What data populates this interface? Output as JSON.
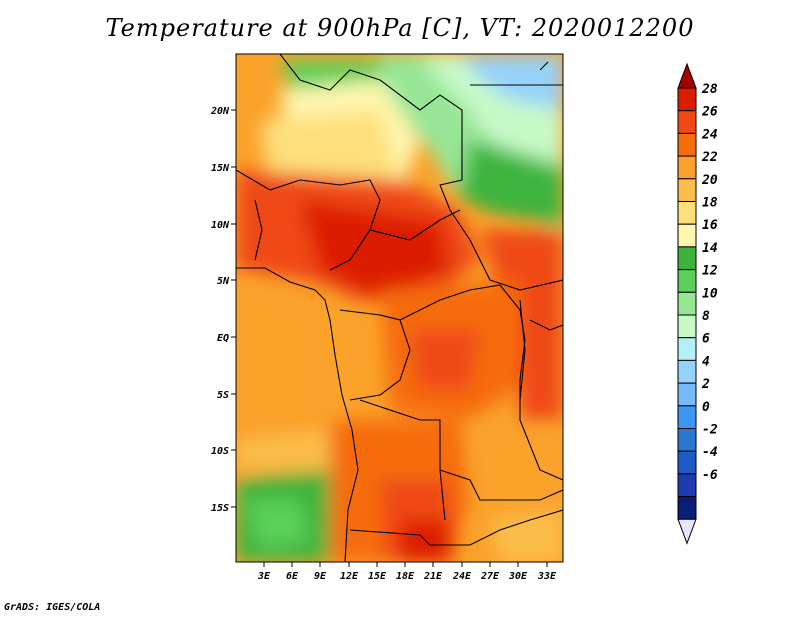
{
  "title": "Temperature at 900hPa [C], VT: 2020012200",
  "credit": "GrADS: IGES/COLA",
  "map": {
    "lat_labels": [
      "20N",
      "15N",
      "10N",
      "5N",
      "EQ",
      "5S",
      "10S",
      "15S"
    ],
    "lon_labels": [
      "3E",
      "6E",
      "9E",
      "12E",
      "15E",
      "18E",
      "21E",
      "24E",
      "27E",
      "30E",
      "33E"
    ]
  },
  "colorbar": {
    "labels": [
      "28",
      "26",
      "24",
      "22",
      "20",
      "18",
      "16",
      "14",
      "12",
      "10",
      "8",
      "6",
      "4",
      "2",
      "0",
      "-2",
      "-4",
      "-6"
    ],
    "colors": [
      "#a50000",
      "#dc1e00",
      "#ef4a16",
      "#f66c0a",
      "#faa22a",
      "#fbbd4a",
      "#fde07c",
      "#fff7b0",
      "#3cb43c",
      "#5ad05a",
      "#96e696",
      "#c8fac8",
      "#b4f0fa",
      "#96d2fa",
      "#78b9fa",
      "#3c96f5",
      "#2878d2",
      "#1e5ac8",
      "#1e3cb4",
      "#0a1e78",
      "#e6e6fa"
    ]
  },
  "legend_colors": {
    "frame": "#000000",
    "background": "#ffffff"
  }
}
